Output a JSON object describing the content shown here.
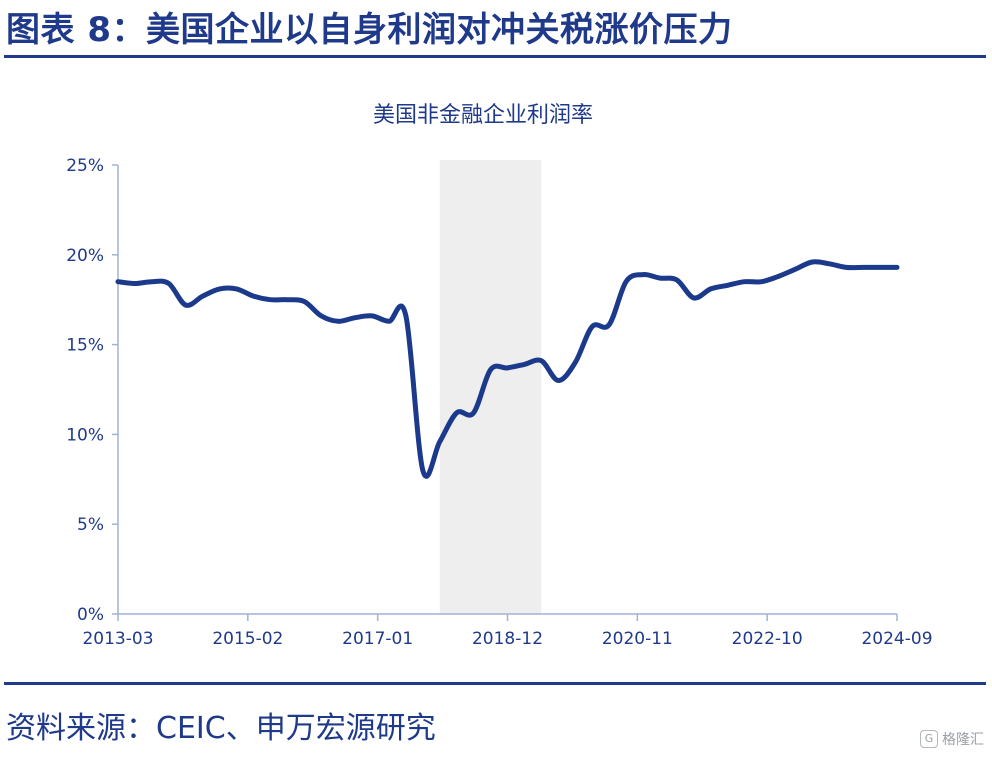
{
  "figure": {
    "title": "图表 8：美国企业以自身利润对冲关税涨价压力",
    "source": "资料来源：CEIC、申万宏源研究"
  },
  "watermark": {
    "icon": "G",
    "text": "格隆汇"
  },
  "colors": {
    "primary": "#1f3a8a",
    "line": "#1b3a8c",
    "shade": "#eeeeee",
    "axis": "#9fb4d0",
    "tick_text": "#1f3a8a"
  },
  "chart_data": {
    "type": "line",
    "title": "美国非金融企业利润率",
    "xlabel": "",
    "ylabel": "",
    "y_unit": "%",
    "ylim": [
      0,
      25
    ],
    "y_ticks": [
      0,
      5,
      10,
      15,
      20,
      25
    ],
    "y_tick_labels": [
      "0%",
      "5%",
      "10%",
      "15%",
      "20%",
      "25%"
    ],
    "x_tick_labels": [
      "2013-03",
      "2015-02",
      "2017-01",
      "2018-12",
      "2020-11",
      "2022-10",
      "2024-09"
    ],
    "x_range": [
      "2013-03",
      "2024-09"
    ],
    "shaded_period": [
      "2017-12",
      "2019-06"
    ],
    "series": [
      {
        "name": "",
        "x": [
          "2013-03",
          "2013-06",
          "2013-09",
          "2013-12",
          "2014-03",
          "2014-06",
          "2014-09",
          "2014-12",
          "2015-03",
          "2015-06",
          "2015-09",
          "2015-12",
          "2016-03",
          "2016-06",
          "2016-09",
          "2016-12",
          "2017-03",
          "2017-06",
          "2017-09",
          "2017-12",
          "2018-03",
          "2018-06",
          "2018-09",
          "2018-12",
          "2019-03",
          "2019-06",
          "2019-09",
          "2019-12",
          "2020-03",
          "2020-06",
          "2020-09",
          "2020-12",
          "2021-03",
          "2021-06",
          "2021-09",
          "2021-12",
          "2022-03",
          "2022-06",
          "2022-09",
          "2022-12",
          "2023-03",
          "2023-06",
          "2023-09",
          "2023-12",
          "2024-03",
          "2024-06",
          "2024-09"
        ],
        "values": [
          18.5,
          18.4,
          18.5,
          18.4,
          17.2,
          17.7,
          18.1,
          18.1,
          17.7,
          17.5,
          17.5,
          17.4,
          16.6,
          16.3,
          16.5,
          16.6,
          16.3,
          16.6,
          8.0,
          9.6,
          11.2,
          11.2,
          13.6,
          13.7,
          13.9,
          14.1,
          13.0,
          14.0,
          16.0,
          16.1,
          18.5,
          18.9,
          18.7,
          18.6,
          17.6,
          18.1,
          18.3,
          18.5,
          18.5,
          18.8,
          19.2,
          19.6,
          19.5,
          19.3,
          19.3,
          19.3,
          19.3
        ]
      }
    ],
    "grid": false,
    "legend": "none"
  }
}
